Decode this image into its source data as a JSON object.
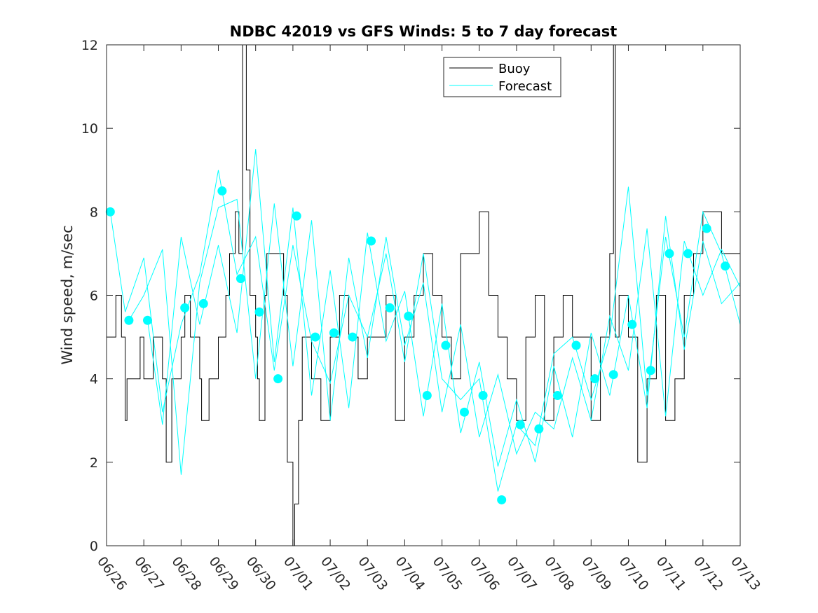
{
  "chart_data": {
    "type": "line",
    "title": "NDBC 42019 vs GFS Winds: 5 to 7 day forecast",
    "xlabel": "",
    "ylabel": "Wind speed, m/sec",
    "xlim": [
      0,
      17
    ],
    "ylim": [
      0,
      12
    ],
    "yticks": [
      0,
      2,
      4,
      6,
      8,
      10,
      12
    ],
    "xtick_labels": [
      "06/26",
      "06/27",
      "06/28",
      "06/29",
      "06/30",
      "07/01",
      "07/02",
      "07/03",
      "07/04",
      "07/05",
      "07/06",
      "07/07",
      "07/08",
      "07/09",
      "07/10",
      "07/11",
      "07/12",
      "07/13"
    ],
    "legend": {
      "placement": "top-center",
      "entries": [
        {
          "name": "Buoy",
          "color": "#000000"
        },
        {
          "name": "Forecast",
          "color": "#00FFFF"
        }
      ]
    },
    "grid": false,
    "series": [
      {
        "name": "Buoy",
        "color": "#000000",
        "style": "step",
        "x": [
          0.0,
          0.25,
          0.4,
          0.5,
          0.55,
          0.75,
          0.9,
          1.0,
          1.25,
          1.5,
          1.6,
          1.75,
          2.0,
          2.1,
          2.25,
          2.5,
          2.55,
          2.75,
          3.0,
          3.2,
          3.3,
          3.45,
          3.55,
          3.65,
          3.75,
          3.85,
          4.0,
          4.05,
          4.1,
          4.25,
          4.3,
          4.5,
          4.75,
          4.85,
          5.0,
          5.05,
          5.15,
          5.25,
          5.5,
          5.75,
          6.0,
          6.25,
          6.5,
          6.75,
          7.0,
          7.25,
          7.5,
          7.75,
          8.0,
          8.25,
          8.5,
          8.75,
          9.0,
          9.25,
          9.5,
          9.75,
          10.0,
          10.25,
          10.5,
          10.75,
          11.0,
          11.25,
          11.5,
          11.75,
          12.0,
          12.25,
          12.5,
          12.75,
          13.0,
          13.25,
          13.5,
          13.6,
          13.65,
          13.75,
          14.0,
          14.25,
          14.5,
          14.75,
          15.0,
          15.25,
          15.5,
          15.75,
          16.0,
          16.25,
          16.5,
          16.75,
          17.0
        ],
        "values": [
          5,
          6,
          5,
          3,
          4,
          4,
          5,
          4,
          5,
          4,
          2,
          4,
          5,
          6,
          5,
          4,
          3,
          4,
          5,
          6,
          7,
          8,
          7,
          12,
          9,
          6,
          5,
          4,
          3,
          6,
          7,
          7,
          6,
          2,
          0,
          1,
          3,
          5,
          4,
          3,
          5,
          6,
          5,
          4,
          5,
          5,
          6,
          3,
          5,
          6,
          7,
          6,
          5,
          4,
          7,
          7,
          8,
          6,
          5,
          4,
          3,
          5,
          6,
          3,
          5,
          6,
          5,
          5,
          3,
          5,
          7,
          12,
          5,
          6,
          5,
          2,
          4,
          6,
          3,
          4,
          6,
          7,
          8,
          8,
          7,
          7,
          6
        ]
      },
      {
        "name": "Forecast",
        "color": "#00FFFF",
        "marker_values": {
          "x": [
            0.1,
            0.6,
            1.1,
            2.1,
            2.6,
            3.1,
            3.6,
            4.1,
            4.6,
            5.1,
            5.6,
            6.1,
            6.6,
            7.1,
            7.6,
            8.1,
            8.6,
            9.1,
            9.6,
            10.1,
            10.6,
            11.1,
            11.6,
            12.1,
            12.6,
            13.1,
            13.6,
            14.1,
            14.6,
            15.1,
            15.6,
            16.1,
            16.6
          ],
          "y": [
            8.0,
            5.4,
            5.4,
            5.7,
            5.8,
            8.5,
            6.4,
            5.6,
            4.0,
            7.9,
            5.0,
            5.1,
            5.0,
            7.3,
            5.7,
            5.5,
            3.6,
            4.8,
            3.2,
            3.6,
            1.1,
            2.9,
            2.8,
            3.6,
            4.8,
            4.0,
            4.1,
            5.3,
            4.2,
            7.0,
            7.0,
            7.6,
            6.7
          ]
        },
        "traces": [
          {
            "x": [
              0.1,
              0.5,
              1.0,
              1.5,
              2.0,
              2.5,
              3.0,
              3.5,
              4.0,
              4.5,
              5.0,
              5.5,
              6.0,
              6.5,
              7.0,
              7.5,
              8.0,
              8.5,
              9.0,
              9.5,
              10.0,
              10.5,
              11.0,
              11.5,
              12.0,
              12.5,
              13.0,
              13.5,
              14.0,
              14.5,
              15.0,
              15.5,
              16.0,
              16.5,
              17.0
            ],
            "y": [
              8.0,
              5.6,
              6.9,
              3.2,
              5.3,
              6.5,
              9.0,
              6.5,
              7.4,
              4.2,
              7.2,
              4.9,
              3.9,
              6.0,
              5.0,
              7.0,
              4.4,
              7.0,
              4.0,
              3.5,
              4.0,
              1.3,
              2.9,
              2.4,
              4.6,
              5.0,
              3.5,
              5.0,
              8.6,
              3.6,
              7.4,
              5.0,
              8.0,
              7.0,
              5.3
            ]
          },
          {
            "x": [
              0.6,
              1.0,
              1.5,
              2.0,
              2.5,
              3.0,
              3.5,
              4.0,
              4.5,
              5.0,
              5.5,
              6.0,
              6.5,
              7.0,
              7.5,
              8.0,
              8.5,
              9.0,
              9.5,
              10.0,
              10.5,
              11.0,
              11.5,
              12.0,
              12.5,
              13.0,
              13.5,
              14.0,
              14.5,
              15.0,
              15.5,
              16.0,
              16.5,
              17.0
            ],
            "y": [
              5.4,
              6.0,
              7.1,
              1.7,
              6.3,
              8.1,
              8.3,
              4.0,
              8.2,
              4.3,
              7.8,
              3.0,
              6.9,
              4.5,
              7.4,
              4.8,
              6.3,
              3.2,
              5.3,
              2.6,
              4.1,
              2.2,
              3.2,
              2.8,
              4.5,
              3.0,
              5.5,
              4.2,
              7.6,
              3.1,
              7.3,
              6.0,
              7.1,
              6.2
            ]
          },
          {
            "x": [
              1.1,
              1.5,
              2.0,
              2.5,
              3.0,
              3.5,
              4.0,
              4.5,
              5.0,
              5.5,
              6.0,
              6.5,
              7.0,
              7.5,
              8.0,
              8.5,
              9.0,
              9.5,
              10.0,
              10.5,
              11.0,
              11.5,
              12.0,
              12.5,
              13.0,
              13.5,
              14.0,
              14.5,
              15.0,
              15.5,
              16.0,
              16.5,
              17.0
            ],
            "y": [
              5.4,
              2.9,
              7.4,
              5.3,
              7.2,
              5.1,
              9.5,
              4.4,
              8.1,
              3.6,
              6.6,
              3.3,
              7.5,
              4.9,
              6.1,
              3.1,
              5.8,
              2.7,
              4.4,
              1.9,
              3.5,
              2.0,
              4.3,
              2.6,
              5.1,
              3.6,
              6.0,
              3.3,
              7.9,
              4.7,
              7.3,
              5.8,
              6.3
            ]
          }
        ]
      }
    ]
  }
}
